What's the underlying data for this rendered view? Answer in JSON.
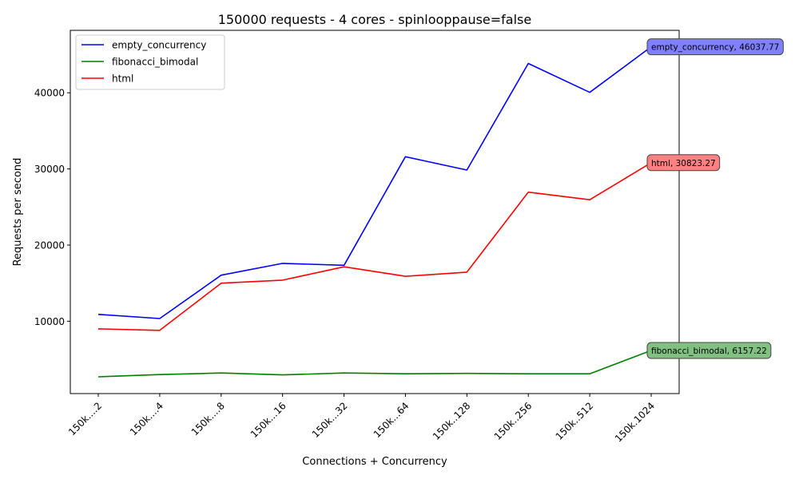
{
  "chart_data": {
    "type": "line",
    "title": "150000 requests - 4 cores - spinlooppause=false",
    "xlabel": "Connections + Concurrency",
    "ylabel": "Requests per second",
    "categories": [
      "150k....2",
      "150k....4",
      "150k....8",
      "150k...16",
      "150k...32",
      "150k...64",
      "150k..128",
      "150k..256",
      "150k..512",
      "150k.1024"
    ],
    "ylim": [
      500,
      48200
    ],
    "yticks": [
      10000,
      20000,
      30000,
      40000
    ],
    "grid": false,
    "legend_position": "top-left",
    "series": [
      {
        "name": "empty_concurrency",
        "color": "#0000ff",
        "values": [
          10900,
          10350,
          16050,
          17600,
          17350,
          31600,
          29850,
          43850,
          40050,
          46037.77
        ]
      },
      {
        "name": "fibonacci_bimodal",
        "color": "#008000",
        "values": [
          2700,
          3000,
          3200,
          2950,
          3200,
          3100,
          3150,
          3100,
          3100,
          6157.22
        ]
      },
      {
        "name": "html",
        "color": "#ff0000",
        "values": [
          9000,
          8800,
          15000,
          15400,
          17150,
          15900,
          16450,
          26950,
          25950,
          30823.27
        ]
      }
    ],
    "annotations": [
      {
        "series": "empty_concurrency",
        "text": "empty_concurrency, 46037.77",
        "background": "#8080ff"
      },
      {
        "series": "html",
        "text": "html, 30823.27",
        "background": "#ff8080"
      },
      {
        "series": "fibonacci_bimodal",
        "text": "fibonacci_bimodal, 6157.22",
        "background": "#80c080"
      }
    ]
  }
}
